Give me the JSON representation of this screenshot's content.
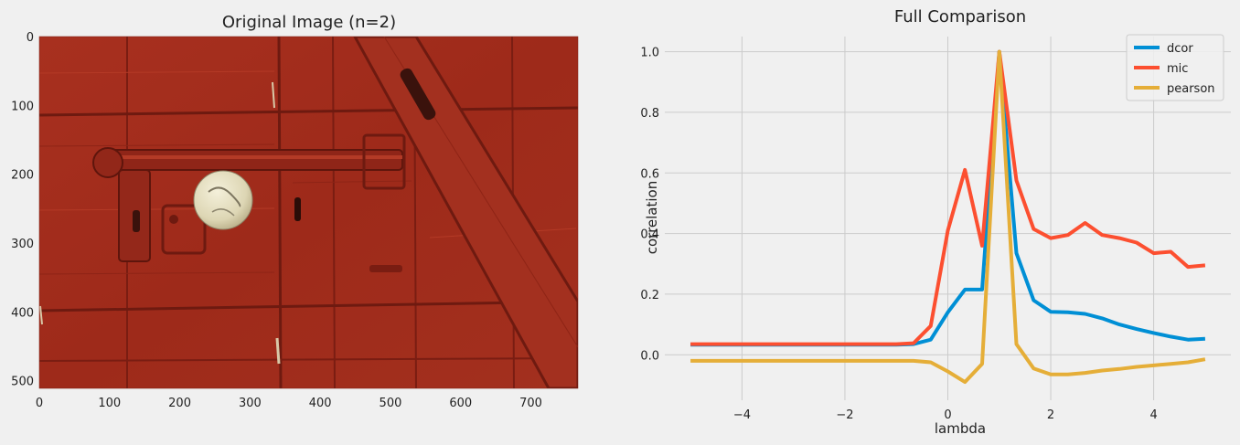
{
  "chart_data": [
    {
      "type": "image",
      "title": "Original Image (n=2)",
      "xlim": [
        0,
        767
      ],
      "ylim": [
        511,
        0
      ],
      "xticks": [
        0,
        100,
        200,
        300,
        400,
        500,
        600,
        700
      ],
      "yticks": [
        0,
        100,
        200,
        300,
        400,
        500
      ],
      "image_description_colors": {
        "wood": "#a52a1a",
        "knob": "#e6e0c4"
      }
    },
    {
      "type": "line",
      "title": "Full Comparison",
      "xlabel": "lambda",
      "ylabel": "correlation",
      "xlim": [
        -5.5,
        5.5
      ],
      "ylim": [
        -0.15,
        1.05
      ],
      "xticks": [
        -4,
        -2,
        0,
        2,
        4
      ],
      "xtick_labels": [
        "−4",
        "−2",
        "0",
        "2",
        "4"
      ],
      "yticks": [
        0.0,
        0.2,
        0.4,
        0.6,
        0.8,
        1.0
      ],
      "ytick_labels": [
        "0.0",
        "0.2",
        "0.4",
        "0.6",
        "0.8",
        "1.0"
      ],
      "grid": true,
      "legend_position": "top-right",
      "x": [
        -5.0,
        -4.667,
        -4.333,
        -4.0,
        -3.667,
        -3.333,
        -3.0,
        -2.667,
        -2.333,
        -2.0,
        -1.667,
        -1.333,
        -1.0,
        -0.667,
        -0.333,
        0.0,
        0.333,
        0.667,
        1.0,
        1.333,
        1.667,
        2.0,
        2.333,
        2.667,
        3.0,
        3.333,
        3.667,
        4.0,
        4.333,
        4.667,
        5.0
      ],
      "series": [
        {
          "name": "dcor",
          "color": "#008fd5",
          "values": [
            0.033,
            0.033,
            0.033,
            0.033,
            0.033,
            0.033,
            0.033,
            0.033,
            0.033,
            0.033,
            0.033,
            0.033,
            0.033,
            0.035,
            0.05,
            0.14,
            0.215,
            0.215,
            1.0,
            0.335,
            0.18,
            0.142,
            0.14,
            0.135,
            0.12,
            0.1,
            0.085,
            0.072,
            0.06,
            0.05,
            0.053
          ]
        },
        {
          "name": "mic",
          "color": "#fc4f30",
          "values": [
            0.035,
            0.035,
            0.035,
            0.035,
            0.035,
            0.035,
            0.035,
            0.035,
            0.035,
            0.035,
            0.035,
            0.035,
            0.035,
            0.038,
            0.095,
            0.41,
            0.61,
            0.36,
            1.0,
            0.575,
            0.415,
            0.385,
            0.395,
            0.435,
            0.395,
            0.385,
            0.37,
            0.335,
            0.34,
            0.29,
            0.295
          ]
        },
        {
          "name": "pearson",
          "color": "#e5ae38",
          "values": [
            -0.02,
            -0.02,
            -0.02,
            -0.02,
            -0.02,
            -0.02,
            -0.02,
            -0.02,
            -0.02,
            -0.02,
            -0.02,
            -0.02,
            -0.02,
            -0.02,
            -0.025,
            -0.055,
            -0.09,
            -0.03,
            1.0,
            0.035,
            -0.045,
            -0.065,
            -0.065,
            -0.06,
            -0.052,
            -0.047,
            -0.04,
            -0.035,
            -0.03,
            -0.025,
            -0.015
          ]
        }
      ]
    }
  ]
}
